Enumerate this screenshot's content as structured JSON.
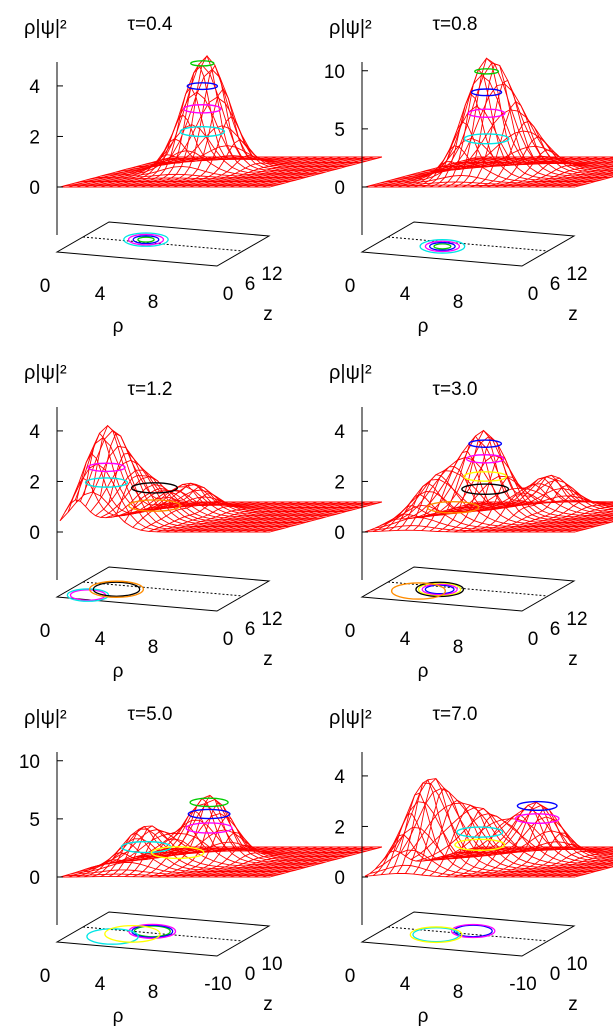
{
  "chart_data": [
    {
      "type": "surface",
      "zlabel": "ρ|ψ|²",
      "tau_label": "τ=0.4",
      "xlabel": "ρ",
      "ylabel": "z",
      "z_ticks": [
        "4",
        "2",
        "0"
      ],
      "z_tick_values": [
        4,
        2,
        0
      ],
      "zlim": [
        0,
        4.6
      ],
      "x_ticks": [
        "0",
        "4",
        "8"
      ],
      "y_ticks": [
        "0",
        "6",
        "12"
      ],
      "peaks": [
        {
          "rho": 4.6,
          "z": 7,
          "height": 4.5
        }
      ],
      "contours": [
        {
          "rho": 4.4,
          "z": 7,
          "level": 4.2,
          "color": "#00cc00"
        },
        {
          "rho": 4.4,
          "z": 7,
          "level": 3.3,
          "color": "#0000ff"
        },
        {
          "rho": 4.4,
          "z": 7,
          "level": 2.4,
          "color": "#ff00ff"
        },
        {
          "rho": 4.4,
          "z": 7,
          "level": 1.5,
          "color": "#00e5e5"
        }
      ]
    },
    {
      "type": "surface",
      "zlabel": "ρ|ψ|²",
      "tau_label": "τ=0.8",
      "xlabel": "ρ",
      "ylabel": "z",
      "z_ticks": [
        "10",
        "5",
        "0"
      ],
      "z_tick_values": [
        10,
        5,
        0
      ],
      "zlim": [
        0,
        10
      ],
      "x_ticks": [
        "0",
        "4",
        "8"
      ],
      "y_ticks": [
        "0",
        "6",
        "12"
      ],
      "peaks": [
        {
          "rho": 4.6,
          "z": 4.4,
          "height": 9.6
        },
        {
          "rho": 6.2,
          "z": 5.8,
          "height": 3.0
        }
      ],
      "contours": [
        {
          "rho": 4.6,
          "z": 4.4,
          "level": 9.0,
          "color": "#00cc00"
        },
        {
          "rho": 4.6,
          "z": 4.4,
          "level": 7.2,
          "color": "#0000ff"
        },
        {
          "rho": 4.6,
          "z": 4.4,
          "level": 5.4,
          "color": "#ff00ff"
        },
        {
          "rho": 4.6,
          "z": 4.4,
          "level": 3.2,
          "color": "#00e5e5"
        }
      ]
    },
    {
      "type": "surface",
      "zlabel": "ρ|ψ|²",
      "tau_label": "τ=1.2",
      "xlabel": "ρ",
      "ylabel": "z",
      "z_ticks": [
        "4",
        "2",
        "0"
      ],
      "z_tick_values": [
        4,
        2,
        0
      ],
      "zlim": [
        0,
        4.6
      ],
      "x_ticks": [
        "0",
        "4",
        "8"
      ],
      "y_ticks": [
        "0",
        "6",
        "12"
      ],
      "peaks": [
        {
          "rho": 1.8,
          "z": 1.6,
          "height": 3.9
        },
        {
          "rho": 2.8,
          "z": 4.0,
          "height": 1.6
        },
        {
          "rho": 3.6,
          "z": 7.2,
          "height": 1.2
        }
      ],
      "contours": [
        {
          "rho": 1.8,
          "z": 1.6,
          "level": 2.4,
          "color": "#ff00ff"
        },
        {
          "rho": 1.8,
          "z": 1.6,
          "level": 1.8,
          "color": "#00e5e5"
        },
        {
          "rho": 3.0,
          "z": 4.5,
          "level": 1.3,
          "color": "#000000"
        },
        {
          "rho": 3.0,
          "z": 4.5,
          "level": 0.6,
          "color": "#ff8c00"
        }
      ]
    },
    {
      "type": "surface",
      "zlabel": "ρ|ψ|²",
      "tau_label": "τ=3.0",
      "xlabel": "ρ",
      "ylabel": "z",
      "z_ticks": [
        "4",
        "2",
        "0"
      ],
      "z_tick_values": [
        4,
        2,
        0
      ],
      "zlim": [
        0,
        4.6
      ],
      "x_ticks": [
        "0",
        "4",
        "8"
      ],
      "y_ticks": [
        "0",
        "6",
        "12"
      ],
      "peaks": [
        {
          "rho": 4.2,
          "z": 5.0,
          "height": 3.4
        },
        {
          "rho": 2.4,
          "z": 3.0,
          "height": 1.7
        },
        {
          "rho": 6.0,
          "z": 8.5,
          "height": 1.4
        }
      ],
      "contours": [
        {
          "rho": 4.2,
          "z": 5.0,
          "level": 3.0,
          "color": "#0000ff"
        },
        {
          "rho": 4.2,
          "z": 5.0,
          "level": 2.4,
          "color": "#ff00ff"
        },
        {
          "rho": 4.2,
          "z": 5.0,
          "level": 1.7,
          "color": "#ffff00"
        },
        {
          "rho": 4.2,
          "z": 5.0,
          "level": 1.2,
          "color": "#000000"
        },
        {
          "rho": 3.0,
          "z": 3.8,
          "level": 0.6,
          "color": "#ff8c00"
        }
      ]
    },
    {
      "type": "surface",
      "zlabel": "ρ|ψ|²",
      "tau_label": "τ=5.0",
      "xlabel": "ρ",
      "ylabel": "z",
      "z_ticks": [
        "10",
        "5",
        "0"
      ],
      "z_tick_values": [
        10,
        5,
        0
      ],
      "zlim": [
        0,
        10
      ],
      "x_ticks": [
        "0",
        "4",
        "8"
      ],
      "y_ticks": [
        "-10",
        "0",
        "10"
      ],
      "peaks": [
        {
          "rho": 5.0,
          "z": 1.0,
          "height": 5.6
        },
        {
          "rho": 3.0,
          "z": -4.0,
          "height": 3.6
        }
      ],
      "contours": [
        {
          "rho": 5.0,
          "z": 1.0,
          "level": 5.0,
          "color": "#00cc00"
        },
        {
          "rho": 5.0,
          "z": 1.0,
          "level": 4.0,
          "color": "#0000ff"
        },
        {
          "rho": 5.0,
          "z": 1.0,
          "level": 2.8,
          "color": "#ff00ff"
        },
        {
          "rho": 3.0,
          "z": -4.0,
          "level": 1.8,
          "color": "#00e5e5"
        },
        {
          "rho": 4.0,
          "z": -1.5,
          "level": 1.0,
          "color": "#ffff00"
        }
      ]
    },
    {
      "type": "surface",
      "zlabel": "ρ|ψ|²",
      "tau_label": "τ=7.0",
      "xlabel": "ρ",
      "ylabel": "z",
      "z_ticks": [
        "4",
        "2",
        "0"
      ],
      "z_tick_values": [
        4,
        2,
        0
      ],
      "zlim": [
        0,
        4.6
      ],
      "x_ticks": [
        "0",
        "4",
        "8"
      ],
      "y_ticks": [
        "-10",
        "0",
        "10"
      ],
      "peaks": [
        {
          "rho": 2.0,
          "z": -5.0,
          "height": 3.5
        },
        {
          "rho": 6.0,
          "z": 2.0,
          "height": 2.2
        },
        {
          "rho": 4.0,
          "z": -2.0,
          "height": 2.0
        }
      ],
      "contours": [
        {
          "rho": 6.0,
          "z": 2.0,
          "level": 2.1,
          "color": "#0000ff"
        },
        {
          "rho": 6.0,
          "z": 2.0,
          "level": 1.6,
          "color": "#ff00ff"
        },
        {
          "rho": 4.0,
          "z": -2.0,
          "level": 1.3,
          "color": "#00e5e5"
        },
        {
          "rho": 4.0,
          "z": -2.0,
          "level": 0.8,
          "color": "#ffff00"
        }
      ]
    }
  ],
  "colors": {
    "mesh": "#ff0000",
    "axes": "#000000",
    "background": "#ffffff"
  }
}
